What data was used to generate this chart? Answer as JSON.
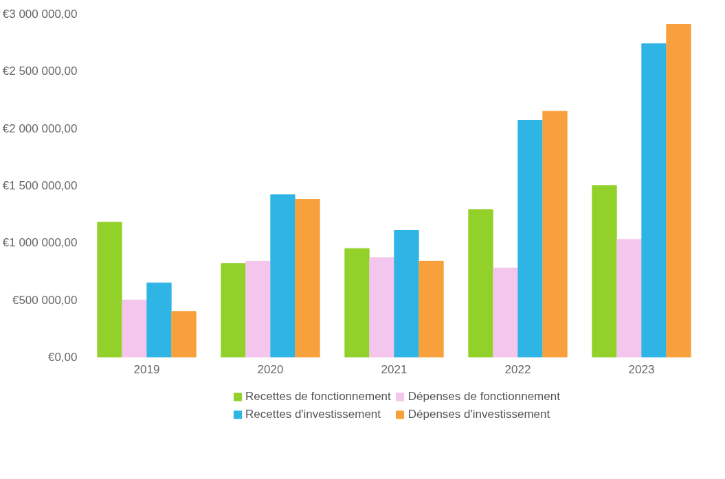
{
  "chart_data": {
    "type": "bar",
    "categories": [
      "2019",
      "2020",
      "2021",
      "2022",
      "2023"
    ],
    "series": [
      {
        "name": "Recettes de fonctionnement",
        "color": "#92d02a",
        "values": [
          1180000,
          820000,
          950000,
          1290000,
          1500000
        ]
      },
      {
        "name": "Dépenses de fonctionnement",
        "color": "#f4c6ee",
        "values": [
          500000,
          840000,
          870000,
          780000,
          1030000
        ]
      },
      {
        "name": "Recettes d'investissement",
        "color": "#2fb4e6",
        "values": [
          650000,
          1420000,
          1110000,
          2070000,
          2740000
        ]
      },
      {
        "name": "Dépenses d'investissement",
        "color": "#f7a03c",
        "values": [
          400000,
          1380000,
          840000,
          2150000,
          2910000
        ]
      }
    ],
    "ylim": [
      0,
      3000000
    ],
    "yticks": [
      {
        "value": 0,
        "label": "€0,00"
      },
      {
        "value": 500000,
        "label": "€500 000,00"
      },
      {
        "value": 1000000,
        "label": "€1 000 000,00"
      },
      {
        "value": 1500000,
        "label": "€1 500 000,00"
      },
      {
        "value": 2000000,
        "label": "€2 000 000,00"
      },
      {
        "value": 2500000,
        "label": "€2 500 000,00"
      },
      {
        "value": 3000000,
        "label": "€3 000 000,00"
      }
    ],
    "grid": false,
    "legend": "bottom"
  }
}
